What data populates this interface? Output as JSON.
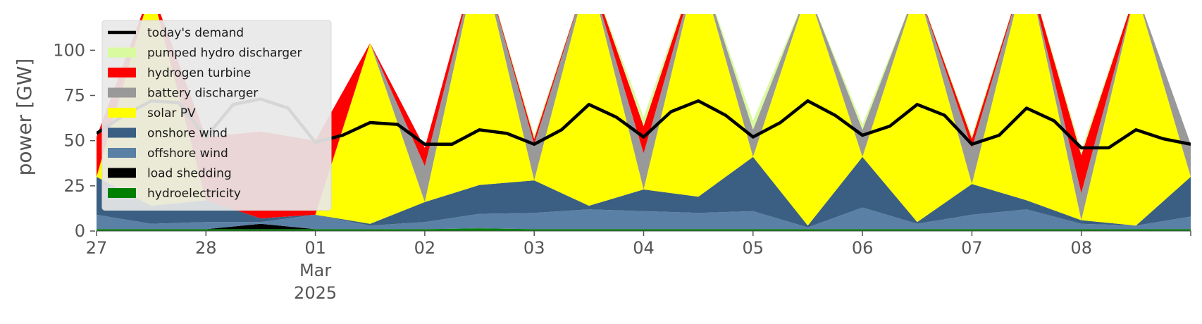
{
  "chart_data": {
    "type": "area",
    "title": "",
    "xlabel": "",
    "ylabel": "power [GW]",
    "xlim": [
      "2025-02-27",
      "2025-03-09"
    ],
    "ylim": [
      0,
      120
    ],
    "y_ticks": [
      0,
      25,
      50,
      75,
      100
    ],
    "y_tick_labels": [
      "0",
      "25",
      "50",
      "75",
      "100"
    ],
    "x_tick_labels": [
      {
        "date": "2025-02-27",
        "lines": [
          "27"
        ]
      },
      {
        "date": "2025-02-28",
        "lines": [
          "28"
        ]
      },
      {
        "date": "2025-03-01",
        "lines": [
          "01",
          "Mar",
          "2025"
        ]
      },
      {
        "date": "2025-03-02",
        "lines": [
          "02"
        ]
      },
      {
        "date": "2025-03-03",
        "lines": [
          "03"
        ]
      },
      {
        "date": "2025-03-04",
        "lines": [
          "04"
        ]
      },
      {
        "date": "2025-03-05",
        "lines": [
          "05"
        ]
      },
      {
        "date": "2025-03-06",
        "lines": [
          "06"
        ]
      },
      {
        "date": "2025-03-07",
        "lines": [
          "07"
        ]
      },
      {
        "date": "2025-03-08",
        "lines": [
          "08"
        ]
      }
    ],
    "grid": false,
    "legend_position": "upper-left",
    "stack_order_bottom_to_top": [
      "hydroelectricity",
      "load shedding",
      "offshore wind",
      "onshore wind",
      "solar PV",
      "battery discharger",
      "hydrogen turbine",
      "pumped hydro discharger"
    ],
    "x": [
      "2025-02-27",
      "2025-02-27T12",
      "2025-02-28",
      "2025-02-28T12",
      "2025-03-01",
      "2025-03-01T12",
      "2025-03-02",
      "2025-03-02T12",
      "2025-03-03",
      "2025-03-03T12",
      "2025-03-04",
      "2025-03-04T12",
      "2025-03-05",
      "2025-03-05T12",
      "2025-03-06",
      "2025-03-06T12",
      "2025-03-07",
      "2025-03-07T12",
      "2025-03-08",
      "2025-03-08T12",
      "2025-03-09"
    ],
    "series": [
      {
        "name": "hydroelectricity",
        "color": "#008000",
        "values": [
          1,
          1,
          1,
          1,
          1,
          1,
          1,
          1.5,
          1,
          1,
          1,
          1,
          1,
          1,
          1,
          1,
          1,
          1,
          1,
          1,
          1
        ]
      },
      {
        "name": "load shedding",
        "color": "#000000",
        "values": [
          0,
          0,
          0,
          3,
          0,
          0,
          0,
          0,
          0,
          0,
          0,
          0,
          0,
          0,
          0,
          0,
          0,
          0,
          0,
          0,
          0
        ]
      },
      {
        "name": "offshore wind",
        "color": "#5b80a5",
        "values": [
          8,
          3,
          4,
          1,
          8,
          2,
          4,
          8,
          9,
          11,
          10,
          9,
          10,
          1,
          12,
          3,
          8,
          11,
          3,
          2,
          7
        ]
      },
      {
        "name": "onshore wind",
        "color": "#3a5f82",
        "values": [
          21,
          10,
          12,
          2,
          0,
          1,
          11,
          16,
          18,
          2,
          12,
          9,
          30,
          1,
          28,
          1,
          17,
          5,
          2,
          0,
          22
        ]
      },
      {
        "name": "solar PV",
        "color": "#ffff00",
        "values": [
          0,
          120,
          0,
          0,
          0,
          100,
          0,
          130,
          0,
          130,
          0,
          130,
          0,
          130,
          0,
          130,
          0,
          130,
          0,
          130,
          0
        ]
      },
      {
        "name": "battery discharger",
        "color": "#999999",
        "values": [
          0,
          0,
          0,
          0,
          0,
          0,
          20,
          0,
          20,
          0,
          20,
          0,
          15,
          0,
          15,
          0,
          20,
          0,
          15,
          0,
          18
        ]
      },
      {
        "name": "hydrogen turbine",
        "color": "#ff0000",
        "values": [
          22,
          0,
          35,
          48,
          41,
          0,
          10,
          0,
          3,
          0,
          15,
          0,
          0,
          0,
          0,
          0,
          5,
          0,
          21,
          0,
          0
        ]
      },
      {
        "name": "pumped hydro discharger",
        "color": "#d9fa9f",
        "values": [
          0,
          0,
          0,
          0,
          0,
          0,
          0,
          0,
          2,
          0,
          5,
          0,
          5,
          0,
          3,
          0,
          2,
          0,
          3,
          0,
          0
        ]
      }
    ],
    "line": {
      "name": "today's demand",
      "color": "#000000",
      "x": [
        "2025-02-27",
        "2025-02-27T06",
        "2025-02-27T12",
        "2025-02-27T18",
        "2025-02-28",
        "2025-02-28T06",
        "2025-02-28T12",
        "2025-02-28T18",
        "2025-03-01",
        "2025-03-01T06",
        "2025-03-01T12",
        "2025-03-01T18",
        "2025-03-02",
        "2025-03-02T06",
        "2025-03-02T12",
        "2025-03-02T18",
        "2025-03-03",
        "2025-03-03T06",
        "2025-03-03T12",
        "2025-03-03T18",
        "2025-03-04",
        "2025-03-04T06",
        "2025-03-04T12",
        "2025-03-04T18",
        "2025-03-05",
        "2025-03-05T06",
        "2025-03-05T12",
        "2025-03-05T18",
        "2025-03-06",
        "2025-03-06T06",
        "2025-03-06T12",
        "2025-03-06T18",
        "2025-03-07",
        "2025-03-07T06",
        "2025-03-07T12",
        "2025-03-07T18",
        "2025-03-08",
        "2025-03-08T06",
        "2025-03-08T12",
        "2025-03-08T18",
        "2025-03-09"
      ],
      "values": [
        54,
        64,
        72,
        71,
        52,
        70,
        73,
        68,
        49,
        53,
        60,
        59,
        48,
        48,
        56,
        54,
        48,
        56,
        70,
        63,
        52,
        66,
        72,
        64,
        52,
        60,
        72,
        64,
        53,
        58,
        70,
        64,
        48,
        53,
        68,
        61,
        46,
        46,
        56,
        51,
        48
      ]
    }
  }
}
